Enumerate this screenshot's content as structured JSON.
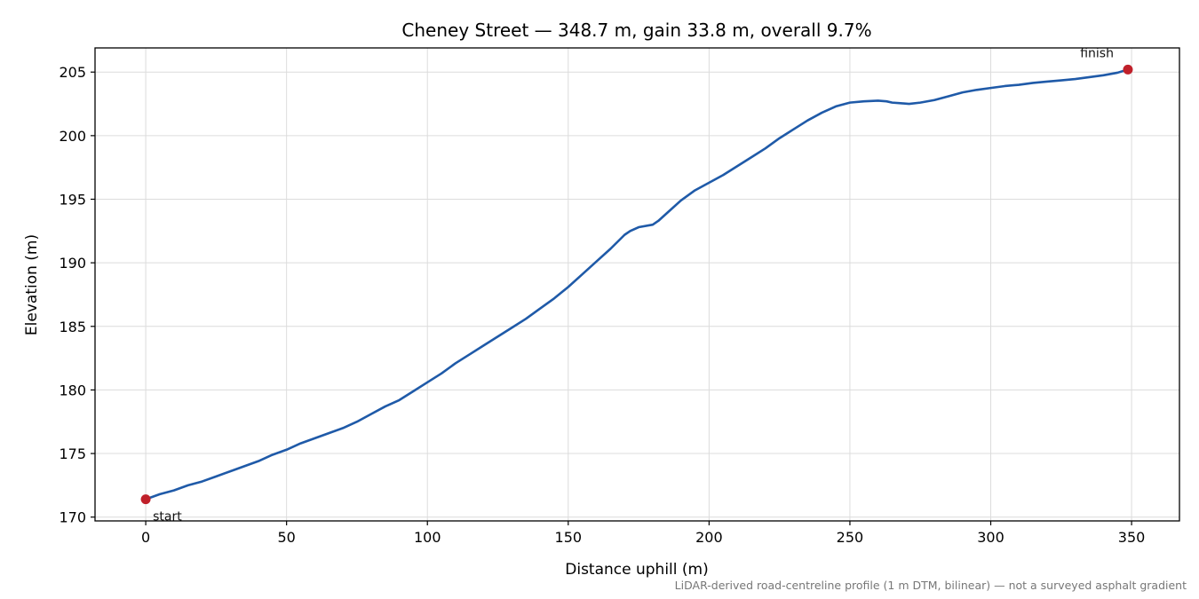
{
  "chart_data": {
    "type": "line",
    "title": "Cheney Street — 348.7 m, gain 33.8 m, overall 9.7%",
    "xlabel": "Distance uphill (m)",
    "ylabel": "Elevation (m)",
    "xlim": [
      -18,
      367
    ],
    "ylim": [
      169.7,
      206.9
    ],
    "xticks": [
      0,
      50,
      100,
      150,
      200,
      250,
      300,
      350
    ],
    "yticks": [
      170,
      175,
      180,
      185,
      190,
      195,
      200,
      205
    ],
    "grid": true,
    "line_color": "#1f5aa8",
    "marker_color": "#c0202a",
    "series": [
      {
        "x": [
          0,
          5,
          10,
          15,
          20,
          25,
          30,
          35,
          40,
          45,
          50,
          55,
          60,
          65,
          70,
          75,
          80,
          85,
          90,
          95,
          100,
          105,
          110,
          115,
          120,
          125,
          130,
          135,
          140,
          145,
          150,
          155,
          160,
          165,
          170,
          172,
          175,
          180,
          182,
          185,
          190,
          195,
          200,
          205,
          210,
          215,
          220,
          225,
          230,
          235,
          240,
          245,
          250,
          255,
          260,
          263,
          265,
          268,
          271,
          275,
          280,
          285,
          290,
          295,
          300,
          305,
          310,
          315,
          320,
          325,
          330,
          335,
          340,
          345,
          348.7
        ],
        "y": [
          171.4,
          171.8,
          172.1,
          172.5,
          172.8,
          173.2,
          173.6,
          174.0,
          174.4,
          174.9,
          175.3,
          175.8,
          176.2,
          176.6,
          177.0,
          177.5,
          178.1,
          178.7,
          179.2,
          179.9,
          180.6,
          181.3,
          182.1,
          182.8,
          183.5,
          184.2,
          184.9,
          185.6,
          186.4,
          187.2,
          188.1,
          189.1,
          190.1,
          191.1,
          192.2,
          192.5,
          192.8,
          193.0,
          193.3,
          193.9,
          194.9,
          195.7,
          196.3,
          196.9,
          197.6,
          198.3,
          199.0,
          199.8,
          200.5,
          201.2,
          201.8,
          202.3,
          202.6,
          202.7,
          202.75,
          202.7,
          202.6,
          202.55,
          202.5,
          202.6,
          202.8,
          203.1,
          203.4,
          203.6,
          203.75,
          203.9,
          204.0,
          204.15,
          204.25,
          204.35,
          204.45,
          204.6,
          204.75,
          204.95,
          205.2
        ]
      }
    ],
    "annotations": [
      {
        "text": "start",
        "x": 0,
        "y": 171.4
      },
      {
        "text": "finish",
        "x": 348.7,
        "y": 205.2
      }
    ],
    "footnote": "LiDAR-derived road-centreline profile (1 m DTM, bilinear) — not a surveyed asphalt gradient"
  }
}
